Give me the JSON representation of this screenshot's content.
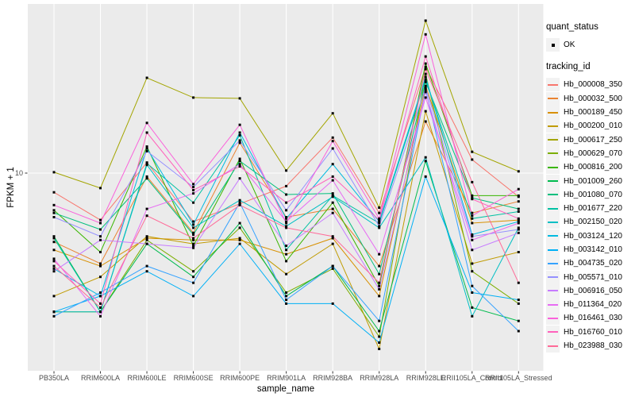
{
  "axes": {
    "x_title": "sample_name",
    "y_title": "FPKM + 1",
    "y_ticks": [
      {
        "label": "10",
        "value": 10
      }
    ]
  },
  "legend": {
    "quant_status_title": "quant_status",
    "quant_status_items": [
      {
        "label": "OK",
        "marker": "black-point"
      }
    ],
    "tracking_title": "tracking_id"
  },
  "chart_data": {
    "type": "line",
    "title": "",
    "xlabel": "sample_name",
    "ylabel": "FPKM + 1",
    "x_type": "categorical",
    "y_scale": "log10",
    "ylim": [
      1.1,
      66
    ],
    "grid": "on",
    "legend_position": "right",
    "panel_bg": "#EBEBEB",
    "grid_color": "#FFFFFF",
    "point_color": "#000000",
    "point_status": "OK",
    "categories": [
      "PB350LA",
      "RRIM600LA",
      "RRIM600LE",
      "RRIM600SE",
      "RRIM600PE",
      "RRIM901LA",
      "RRIM928BA",
      "RRIM928LA",
      "RRIM928LE",
      "RRII105LA_Control",
      "RRII105LA_Stressed"
    ],
    "series": [
      {
        "name": "Hb_000008_350",
        "color": "#F8766D",
        "values": [
          8.0,
          5.8,
          11.3,
          5.7,
          7.0,
          8.6,
          15.1,
          6.3,
          34.3,
          11.7,
          7.6
        ]
      },
      {
        "name": "Hb_000032_500",
        "color": "#EA8331",
        "values": [
          4.5,
          3.5,
          9.6,
          5.0,
          14.2,
          6.0,
          6.6,
          3.4,
          18.2,
          6.3,
          7.2
        ]
      },
      {
        "name": "Hb_000189_450",
        "color": "#D89000",
        "values": [
          4.1,
          3.4,
          4.7,
          4.6,
          4.6,
          3.9,
          4.7,
          2.4,
          27.5,
          5.6,
          5.8
        ]
      },
      {
        "name": "Hb_000200_010",
        "color": "#C09B00",
        "values": [
          2.4,
          3.0,
          4.8,
          4.4,
          4.7,
          3.1,
          4.4,
          1.3,
          20.5,
          3.5,
          4.0
        ]
      },
      {
        "name": "Hb_000617_250",
        "color": "#A3A500",
        "values": [
          10.1,
          8.4,
          30.2,
          24.0,
          23.8,
          10.3,
          20.0,
          6.7,
          58.6,
          12.8,
          10.2
        ]
      },
      {
        "name": "Hb_000629_070",
        "color": "#7CAE00",
        "values": [
          2.0,
          2.0,
          4.6,
          3.2,
          5.3,
          2.5,
          3.3,
          1.5,
          31.6,
          3.2,
          2.2
        ]
      },
      {
        "name": "Hb_000816_200",
        "color": "#39B600",
        "values": [
          6.5,
          4.0,
          13.6,
          4.3,
          11.8,
          3.6,
          7.1,
          2.7,
          35.6,
          7.7,
          7.7
        ]
      },
      {
        "name": "Hb_001009_260",
        "color": "#00BB4E",
        "values": [
          4.8,
          2.0,
          4.4,
          3.0,
          5.6,
          2.4,
          3.4,
          1.6,
          11.5,
          2.1,
          1.8
        ]
      },
      {
        "name": "Hb_001080_070",
        "color": "#00BF7D",
        "values": [
          6.3,
          5.2,
          9.4,
          4.9,
          11.5,
          7.8,
          7.9,
          3.1,
          28.8,
          7.5,
          6.6
        ]
      },
      {
        "name": "Hb_001677_220",
        "color": "#00C1A3",
        "values": [
          4.7,
          2.0,
          11.2,
          7.1,
          15.5,
          4.1,
          7.7,
          5.6,
          29.6,
          5.9,
          6.4
        ]
      },
      {
        "name": "Hb_002150_020",
        "color": "#00BFC4",
        "values": [
          2.0,
          2.0,
          11.0,
          5.3,
          7.3,
          5.4,
          7.6,
          5.3,
          12.0,
          1.9,
          5.3
        ]
      },
      {
        "name": "Hb_003124_120",
        "color": "#00BAE0",
        "values": [
          3.3,
          2.4,
          13.3,
          5.5,
          16.0,
          5.9,
          11.1,
          5.7,
          30.5,
          4.9,
          5.7
        ]
      },
      {
        "name": "Hb_003142_010",
        "color": "#00B0F6",
        "values": [
          2.0,
          2.4,
          3.2,
          2.4,
          4.4,
          2.2,
          2.2,
          1.4,
          9.6,
          2.5,
          2.3
        ]
      },
      {
        "name": "Hb_004735_020",
        "color": "#35A2FF",
        "values": [
          1.9,
          2.5,
          3.4,
          2.8,
          7.1,
          2.3,
          3.4,
          1.8,
          26.3,
          2.7,
          1.6
        ]
      },
      {
        "name": "Hb_005571_010",
        "color": "#9590FF",
        "values": [
          6.0,
          4.8,
          12.9,
          8.5,
          14.6,
          6.5,
          13.3,
          5.4,
          27.0,
          4.8,
          5.2
        ]
      },
      {
        "name": "Hb_006916_050",
        "color": "#C77CFF",
        "values": [
          3.2,
          4.6,
          4.4,
          4.2,
          9.4,
          4.3,
          6.3,
          2.6,
          25.6,
          4.1,
          5.0
        ]
      },
      {
        "name": "Hb_011364_020",
        "color": "#E76BF3",
        "values": [
          3.7,
          1.9,
          6.6,
          7.9,
          11.1,
          5.7,
          9.2,
          3.9,
          24.0,
          4.6,
          5.6
        ]
      },
      {
        "name": "Hb_016461_030",
        "color": "#FA62DB",
        "values": [
          6.9,
          5.6,
          17.9,
          8.8,
          17.5,
          5.6,
          14.5,
          5.9,
          50.0,
          6.1,
          8.3
        ]
      },
      {
        "name": "Hb_016760_010",
        "color": "#FF62BC",
        "values": [
          3.6,
          2.2,
          16.0,
          8.2,
          10.8,
          7.1,
          9.6,
          5.8,
          38.7,
          7.4,
          5.9
        ]
      },
      {
        "name": "Hb_023988_030",
        "color": "#FF6A98",
        "values": [
          3.4,
          2.1,
          6.1,
          4.7,
          6.9,
          5.3,
          4.8,
          2.8,
          33.4,
          9.0,
          2.8
        ]
      }
    ]
  }
}
